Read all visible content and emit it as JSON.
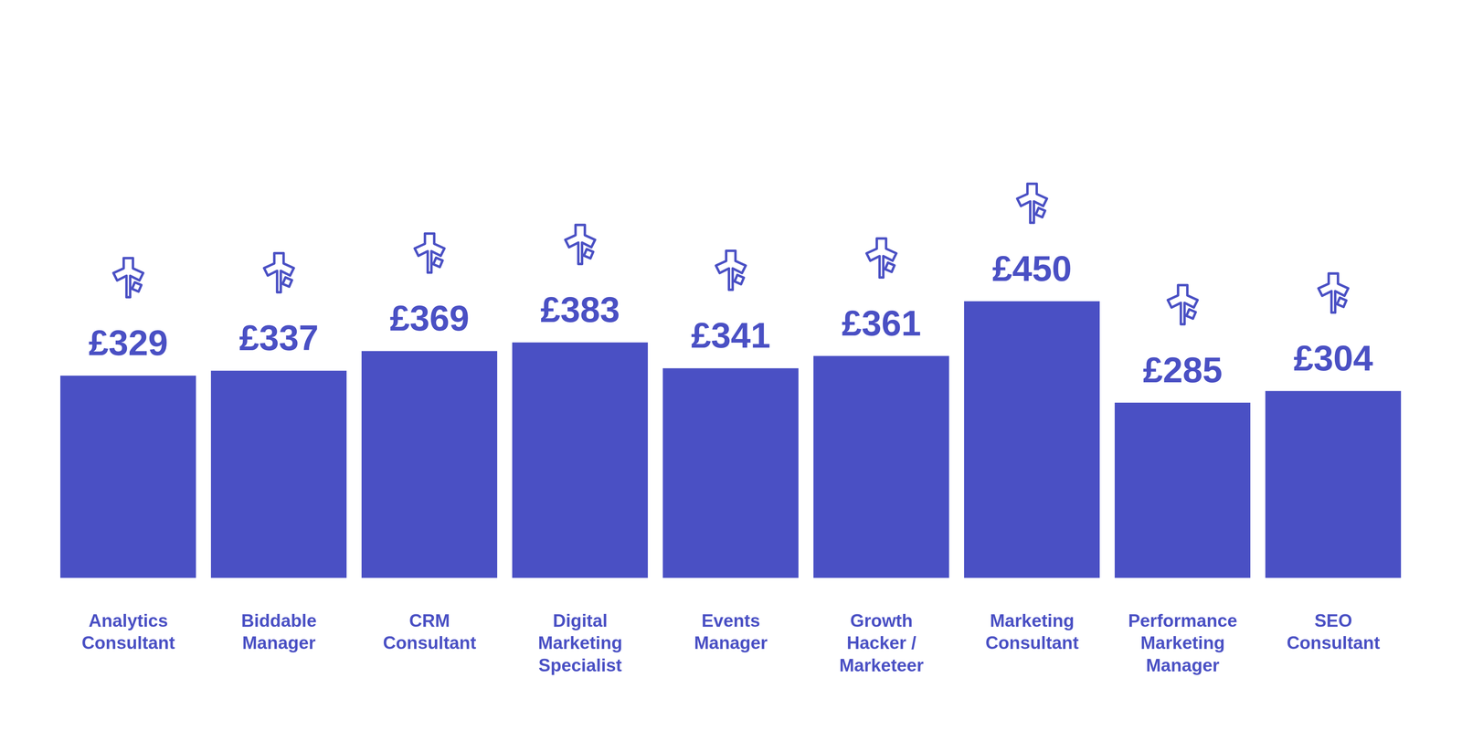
{
  "chart_data": {
    "type": "bar",
    "categories": [
      "Analytics Consultant",
      "Biddable Manager",
      "CRM Consultant",
      "Digital Marketing Specialist",
      "Events Manager",
      "Growth Hacker / Marketeer",
      "Marketing Consultant",
      "Performance Marketing Manager",
      "SEO Consultant"
    ],
    "values": [
      329,
      337,
      369,
      383,
      341,
      361,
      450,
      285,
      304
    ],
    "value_labels": [
      "£329",
      "£337",
      "£369",
      "£383",
      "£341",
      "£361",
      "£450",
      "£285",
      "£304"
    ],
    "color": "#4a50c4",
    "ylim": [
      0,
      450
    ],
    "data_labels": true,
    "tick_labels": "x",
    "grid": false
  }
}
